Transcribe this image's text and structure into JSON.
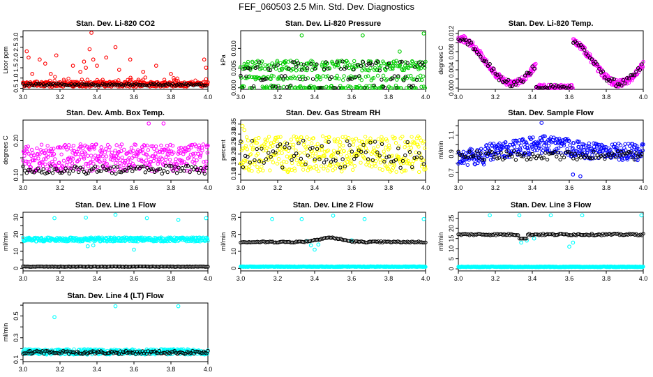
{
  "title": "FEF_060503  2.5 Min. Std. Dev. Diagnostics",
  "colors": {
    "red": "#ff0000",
    "green": "#00cc00",
    "magenta": "#ff00ff",
    "yellow": "#ffff00",
    "blue": "#0000ff",
    "cyan": "#00ffff",
    "black": "#000000"
  },
  "chart_data": [
    {
      "type": "scatter",
      "title": "Stan. Dev. Li-820 CO2",
      "xlabel": "",
      "ylabel": "Licor ppm",
      "xlim": [
        3.0,
        4.0
      ],
      "ylim": [
        0.45,
        3.3
      ],
      "xticks": [
        3.0,
        3.2,
        3.4,
        3.6,
        3.8,
        4.0
      ],
      "xtick_labels": [
        "3.0",
        "3.2",
        "3.4",
        "3.6",
        "3.8",
        "4.0"
      ],
      "yticks": [
        0.5,
        1.0,
        1.5,
        2.0,
        2.5,
        3.0
      ],
      "ytick_labels": [
        "0.5",
        "1.0",
        "1.5",
        "2.0",
        "2.5",
        "3.0"
      ],
      "series": [
        {
          "color": "red",
          "base": 0.7,
          "spread": 0.12,
          "spikes": [
            [
              3.02,
              2.3
            ],
            [
              3.03,
              2.0
            ],
            [
              3.05,
              1.2
            ],
            [
              3.09,
              1.9
            ],
            [
              3.12,
              1.7
            ],
            [
              3.15,
              1.2
            ],
            [
              3.18,
              2.1
            ],
            [
              3.27,
              1.6
            ],
            [
              3.31,
              1.3
            ],
            [
              3.33,
              1.8
            ],
            [
              3.34,
              1.5
            ],
            [
              3.36,
              2.4
            ],
            [
              3.37,
              3.2
            ],
            [
              3.38,
              1.9
            ],
            [
              3.4,
              1.6
            ],
            [
              3.45,
              2.0
            ],
            [
              3.5,
              2.5
            ],
            [
              3.52,
              1.4
            ],
            [
              3.58,
              1.9
            ],
            [
              3.65,
              1.3
            ],
            [
              3.72,
              1.6
            ],
            [
              3.8,
              1.2
            ],
            [
              3.98,
              1.9
            ],
            [
              3.99,
              1.5
            ]
          ],
          "extra_spread": 0.25
        },
        {
          "color": "black",
          "base": 0.68,
          "spread": 0.05,
          "every": 4
        }
      ]
    },
    {
      "type": "scatter",
      "title": "Stan. Dev. Li-820 Pressure",
      "xlabel": "",
      "ylabel": "kPa",
      "xlim": [
        3.0,
        4.0
      ],
      "ylim": [
        -0.0004,
        0.0145
      ],
      "xticks": [
        3.0,
        3.2,
        3.4,
        3.6,
        3.8,
        4.0
      ],
      "xtick_labels": [
        "3.0",
        "3.2",
        "3.4",
        "3.6",
        "3.8",
        "4.0"
      ],
      "yticks": [
        0.0,
        0.005,
        0.01
      ],
      "ytick_labels": [
        "0.000",
        "0.005",
        "0.010"
      ],
      "series": [
        {
          "color": "green",
          "levels": [
            0.0,
            0.0025,
            0.005,
            0.0063
          ],
          "spikes": [
            [
              3.33,
              0.0133
            ],
            [
              3.66,
              0.0133
            ],
            [
              3.86,
              0.0092
            ],
            [
              3.99,
              0.0138
            ]
          ]
        },
        {
          "color": "black",
          "levels": [
            0.0,
            0.0025,
            0.005,
            0.0063
          ],
          "every": 4
        }
      ]
    },
    {
      "type": "scatter",
      "title": "Stan. Dev. Li-820 Temp.",
      "xlabel": "",
      "ylabel": "degrees C",
      "xlim": [
        3.0,
        4.0
      ],
      "ylim": [
        -0.0003,
        0.0126
      ],
      "xticks": [
        3.0,
        3.2,
        3.4,
        3.6,
        3.8,
        4.0
      ],
      "xtick_labels": [
        "3.0",
        "3.2",
        "3.4",
        "3.6",
        "3.8",
        "4.0"
      ],
      "yticks": [
        0.0,
        0.002,
        0.004,
        0.006,
        0.008,
        0.01,
        0.012
      ],
      "ytick_labels": [
        "0.000",
        "",
        "0.004",
        "",
        "0.008",
        "",
        "0.012"
      ],
      "series": [
        {
          "color": "magenta",
          "wave": true
        },
        {
          "color": "black",
          "wave": true,
          "every": 4
        }
      ]
    },
    {
      "type": "scatter",
      "title": "Stan. Dev. Amb. Box Temp.",
      "xlabel": "",
      "ylabel": "degrees C",
      "xlim": [
        3.0,
        4.0
      ],
      "ylim": [
        0.085,
        0.26
      ],
      "xticks": [
        3.0,
        3.2,
        3.4,
        3.6,
        3.8,
        4.0
      ],
      "xtick_labels": [
        "3.0",
        "3.2",
        "3.4",
        "3.6",
        "3.8",
        "4.0"
      ],
      "yticks": [
        0.1,
        0.15,
        0.2
      ],
      "ytick_labels": [
        "0.10",
        "",
        "0.20"
      ],
      "series": [
        {
          "color": "magenta",
          "base": 0.15,
          "spread": 0.04,
          "spikes": [
            [
              3.68,
              0.25
            ],
            [
              3.76,
              0.25
            ]
          ]
        },
        {
          "color": "black",
          "base": 0.115,
          "spread": 0.012,
          "every": 4
        }
      ]
    },
    {
      "type": "scatter",
      "title": "Stan. Dev. Gas Stream RH",
      "xlabel": "",
      "ylabel": "percent",
      "xlim": [
        3.0,
        4.0
      ],
      "ylim": [
        0.07,
        0.37
      ],
      "xticks": [
        3.0,
        3.2,
        3.4,
        3.6,
        3.8,
        4.0
      ],
      "xtick_labels": [
        "3.0",
        "3.2",
        "3.4",
        "3.6",
        "3.8",
        "4.0"
      ],
      "yticks": [
        0.1,
        0.15,
        0.2,
        0.25,
        0.3,
        0.35
      ],
      "ytick_labels": [
        "0.10",
        "0.15",
        "0.20",
        "0.25",
        "0.30",
        "0.35"
      ],
      "series": [
        {
          "color": "yellow",
          "base": 0.2,
          "spread": 0.09,
          "spikes": [
            [
              3.01,
              0.34
            ],
            [
              3.02,
              0.32
            ]
          ]
        },
        {
          "color": "black",
          "base": 0.2,
          "spread": 0.07,
          "every": 5
        }
      ]
    },
    {
      "type": "scatter",
      "title": "Stan. Dev. Sample Flow",
      "xlabel": "",
      "ylabel": "ml/min",
      "xlim": [
        3.0,
        4.0
      ],
      "ylim": [
        0.62,
        1.26
      ],
      "xticks": [
        3.0,
        3.2,
        3.4,
        3.6,
        3.8,
        4.0
      ],
      "xtick_labels": [
        "3.0",
        "3.2",
        "3.4",
        "3.6",
        "3.8",
        "4.0"
      ],
      "yticks": [
        0.7,
        0.8,
        0.9,
        1.0,
        1.1,
        1.2
      ],
      "ytick_labels": [
        "0.7",
        "",
        "0.9",
        "",
        "1.1",
        ""
      ],
      "series": [
        {
          "color": "blue",
          "base": 0.92,
          "spread": 0.09,
          "hump": true,
          "spikes": [
            [
              3.45,
              1.23
            ],
            [
              3.62,
              0.68
            ],
            [
              3.66,
              0.66
            ]
          ]
        },
        {
          "color": "black",
          "base": 0.88,
          "spread": 0.05,
          "every": 4
        }
      ]
    },
    {
      "type": "scatter",
      "title": "Stan. Dev. Line 1 Flow",
      "xlabel": "",
      "ylabel": "ml/min",
      "xlim": [
        3.0,
        4.0
      ],
      "ylim": [
        -1.5,
        33
      ],
      "xticks": [
        3.0,
        3.2,
        3.4,
        3.6,
        3.8,
        4.0
      ],
      "xtick_labels": [
        "3.0",
        "3.2",
        "3.4",
        "3.6",
        "3.8",
        "4.0"
      ],
      "yticks": [
        0,
        5,
        10,
        15,
        20,
        25,
        30
      ],
      "ytick_labels": [
        "0",
        "",
        "10",
        "",
        "20",
        "",
        "30"
      ],
      "series": [
        {
          "color": "cyan",
          "base": 17.0,
          "spread": 1.2,
          "spikes": [
            [
              3.17,
              29.5
            ],
            [
              3.34,
              29.8
            ],
            [
              3.5,
              31.5
            ],
            [
              3.67,
              29.5
            ],
            [
              3.84,
              28.5
            ],
            [
              3.99,
              29.5
            ],
            [
              3.6,
              11.0
            ],
            [
              3.35,
              13.0
            ],
            [
              3.38,
              13.5
            ]
          ]
        },
        {
          "color": "black",
          "base": 1.0,
          "spread": 0.15,
          "every": 3
        }
      ]
    },
    {
      "type": "scatter",
      "title": "Stan. Dev. Line 2 Flow",
      "xlabel": "",
      "ylabel": "ml/min",
      "xlim": [
        3.0,
        4.0
      ],
      "ylim": [
        -1.5,
        33
      ],
      "xticks": [
        3.0,
        3.2,
        3.4,
        3.6,
        3.8,
        4.0
      ],
      "xtick_labels": [
        "3.0",
        "3.2",
        "3.4",
        "3.6",
        "3.8",
        "4.0"
      ],
      "yticks": [
        0,
        10,
        20,
        30
      ],
      "ytick_labels": [
        "0",
        "10",
        "20",
        "30"
      ],
      "series": [
        {
          "color": "cyan",
          "base": 1.0,
          "spread": 0.2,
          "spikes": [
            [
              3.17,
              29.0
            ],
            [
              3.33,
              29.0
            ],
            [
              3.5,
              31.0
            ],
            [
              3.67,
              29.0
            ],
            [
              3.99,
              29.0
            ],
            [
              3.4,
              11.0
            ],
            [
              3.38,
              13.5
            ],
            [
              3.42,
              14.0
            ],
            [
              3.36,
              16.0
            ],
            [
              3.6,
              16.5
            ]
          ]
        },
        {
          "color": "black",
          "flow": true,
          "every": 3
        }
      ]
    },
    {
      "type": "scatter",
      "title": "Stan. Dev. Line 3 Flow",
      "xlabel": "",
      "ylabel": "ml/min",
      "xlim": [
        3.0,
        4.0
      ],
      "ylim": [
        -1.0,
        28
      ],
      "xticks": [
        3.0,
        3.2,
        3.4,
        3.6,
        3.8,
        4.0
      ],
      "xtick_labels": [
        "3.0",
        "3.2",
        "3.4",
        "3.6",
        "3.8",
        "4.0"
      ],
      "yticks": [
        0,
        5,
        10,
        15,
        20,
        25
      ],
      "ytick_labels": [
        "0",
        "5",
        "10",
        "15",
        "20",
        "25"
      ],
      "series": [
        {
          "color": "cyan",
          "base": 1.0,
          "spread": 0.2,
          "spikes": [
            [
              3.17,
              26.5
            ],
            [
              3.33,
              26.5
            ],
            [
              3.5,
              26.5
            ],
            [
              3.67,
              26.5
            ],
            [
              3.99,
              26.5
            ],
            [
              3.34,
              13.0
            ],
            [
              3.37,
              14.0
            ],
            [
              3.41,
              15.0
            ],
            [
              3.6,
              11.0
            ],
            [
              3.62,
              13.0
            ]
          ]
        },
        {
          "color": "black",
          "flow3": true,
          "every": 3
        }
      ]
    },
    {
      "type": "scatter",
      "title": "Stan. Dev. Line 4 (LT) Flow",
      "xlabel": "",
      "ylabel": "ml/min",
      "xlim": [
        3.0,
        4.0
      ],
      "ylim": [
        0.08,
        0.62
      ],
      "xticks": [
        3.0,
        3.2,
        3.4,
        3.6,
        3.8,
        4.0
      ],
      "xtick_labels": [
        "3.0",
        "3.2",
        "3.4",
        "3.6",
        "3.8",
        "4.0"
      ],
      "yticks": [
        0.1,
        0.2,
        0.3,
        0.4,
        0.5,
        0.6
      ],
      "ytick_labels": [
        "0.1",
        "",
        "0.3",
        "",
        "0.5",
        ""
      ],
      "series": [
        {
          "color": "cyan",
          "base": 0.17,
          "spread": 0.025,
          "spikes": [
            [
              3.17,
              0.49
            ],
            [
              3.5,
              0.59
            ],
            [
              3.84,
              0.59
            ]
          ]
        },
        {
          "color": "black",
          "base": 0.165,
          "spread": 0.015,
          "every": 3
        }
      ]
    }
  ]
}
